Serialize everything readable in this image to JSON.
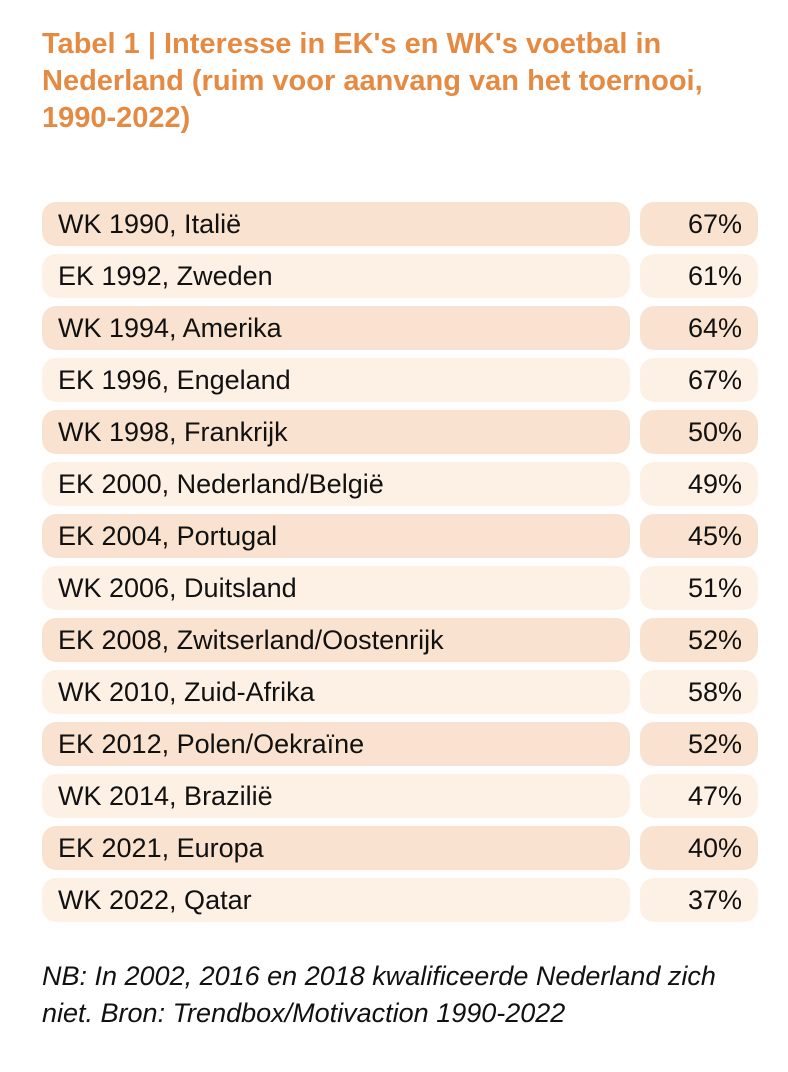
{
  "title": "Tabel 1 | Interesse in EK's en WK's voetbal in Nederland (ruim voor aanvang van het toernooi, 1990-2022)",
  "colors": {
    "title": "#e58a42",
    "row_dark": "#f9e2cf",
    "row_light": "#fdf1e6"
  },
  "rows": [
    {
      "label": "WK 1990, Italië",
      "value": "67%"
    },
    {
      "label": "EK 1992, Zweden",
      "value": "61%"
    },
    {
      "label": "WK 1994, Amerika",
      "value": "64%"
    },
    {
      "label": "EK 1996, Engeland",
      "value": "67%"
    },
    {
      "label": "WK 1998, Frankrijk",
      "value": "50%"
    },
    {
      "label": "EK 2000, Nederland/België",
      "value": "49%"
    },
    {
      "label": "EK 2004, Portugal",
      "value": "45%"
    },
    {
      "label": "WK 2006, Duitsland",
      "value": "51%"
    },
    {
      "label": "EK 2008, Zwitserland/Oostenrijk",
      "value": "52%"
    },
    {
      "label": "WK 2010, Zuid-Afrika",
      "value": "58%"
    },
    {
      "label": "EK 2012, Polen/Oekraïne",
      "value": "52%"
    },
    {
      "label": "WK 2014, Brazilië",
      "value": "47%"
    },
    {
      "label": "EK 2021, Europa",
      "value": "40%"
    },
    {
      "label": "WK 2022, Qatar",
      "value": "37%"
    }
  ],
  "note": "NB: In 2002, 2016 en 2018 kwalificeerde Nederland zich niet. Bron: Trendbox/Motivaction 1990-2022"
}
